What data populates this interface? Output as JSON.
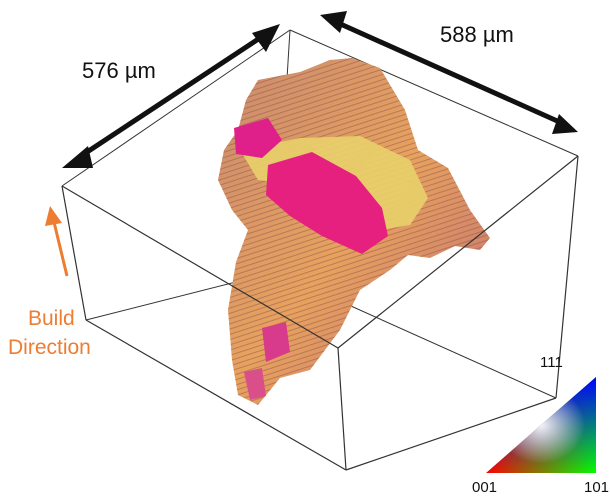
{
  "dimensions": {
    "width_label": "576 µm",
    "depth_label": "588 µm"
  },
  "build_direction": {
    "line1": "Build",
    "line2": "Direction",
    "color": "#ed7d31"
  },
  "ipf_key": {
    "top_label": "111",
    "bottom_left_label": "001",
    "bottom_right_label": "101",
    "colors": [
      "#ff0000",
      "#00ff00",
      "#0000ff"
    ]
  },
  "grain_colors": [
    "#e6207f",
    "#c98a6e",
    "#e7a25e",
    "#e3d36a",
    "#bf6b73"
  ]
}
